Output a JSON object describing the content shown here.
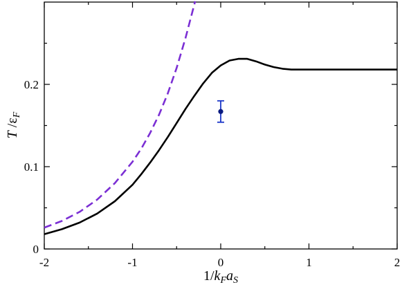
{
  "chart_data": {
    "type": "line",
    "xlim": [
      -2,
      2
    ],
    "ylim": [
      0,
      0.3
    ],
    "x_ticks": [
      -2,
      -1,
      0,
      1,
      2
    ],
    "y_ticks": [
      0,
      0.1,
      0.2
    ],
    "x_tick_labels": [
      "-2",
      "-1",
      "0",
      "1",
      "2"
    ],
    "y_tick_labels": [
      "0",
      "0.1",
      "0.2"
    ],
    "xlabel": {
      "prefix": "1/",
      "k": "k",
      "k_sub": "F",
      "a": "a",
      "a_sub": "S"
    },
    "ylabel": {
      "T": "T",
      "slash": " /",
      "eps": "ε",
      "eps_sub": "F"
    },
    "grid": false,
    "series": [
      {
        "style": "solid",
        "color": "#000000",
        "points": [
          [
            -2.0,
            0.018
          ],
          [
            -1.8,
            0.024
          ],
          [
            -1.6,
            0.032
          ],
          [
            -1.4,
            0.043
          ],
          [
            -1.2,
            0.058
          ],
          [
            -1.0,
            0.078
          ],
          [
            -0.9,
            0.091
          ],
          [
            -0.8,
            0.105
          ],
          [
            -0.7,
            0.12
          ],
          [
            -0.6,
            0.136
          ],
          [
            -0.5,
            0.153
          ],
          [
            -0.4,
            0.17
          ],
          [
            -0.3,
            0.186
          ],
          [
            -0.2,
            0.201
          ],
          [
            -0.1,
            0.214
          ],
          [
            0.0,
            0.223
          ],
          [
            0.1,
            0.229
          ],
          [
            0.2,
            0.231
          ],
          [
            0.3,
            0.231
          ],
          [
            0.4,
            0.228
          ],
          [
            0.5,
            0.224
          ],
          [
            0.6,
            0.221
          ],
          [
            0.7,
            0.219
          ],
          [
            0.8,
            0.218
          ],
          [
            1.0,
            0.218
          ],
          [
            1.5,
            0.218
          ],
          [
            2.0,
            0.218
          ]
        ]
      },
      {
        "style": "dashed",
        "color": "#7b2fd4",
        "points": [
          [
            -2.0,
            0.026
          ],
          [
            -1.8,
            0.034
          ],
          [
            -1.6,
            0.045
          ],
          [
            -1.4,
            0.06
          ],
          [
            -1.2,
            0.08
          ],
          [
            -1.0,
            0.106
          ],
          [
            -0.9,
            0.122
          ],
          [
            -0.8,
            0.141
          ],
          [
            -0.7,
            0.163
          ],
          [
            -0.6,
            0.189
          ],
          [
            -0.5,
            0.22
          ],
          [
            -0.4,
            0.256
          ],
          [
            -0.3,
            0.297
          ],
          [
            -0.29,
            0.301
          ]
        ]
      }
    ],
    "error_points": [
      {
        "x": 0.0,
        "y": 0.167,
        "y_low": 0.154,
        "y_high": 0.18,
        "color": "#1a35c8"
      }
    ]
  }
}
